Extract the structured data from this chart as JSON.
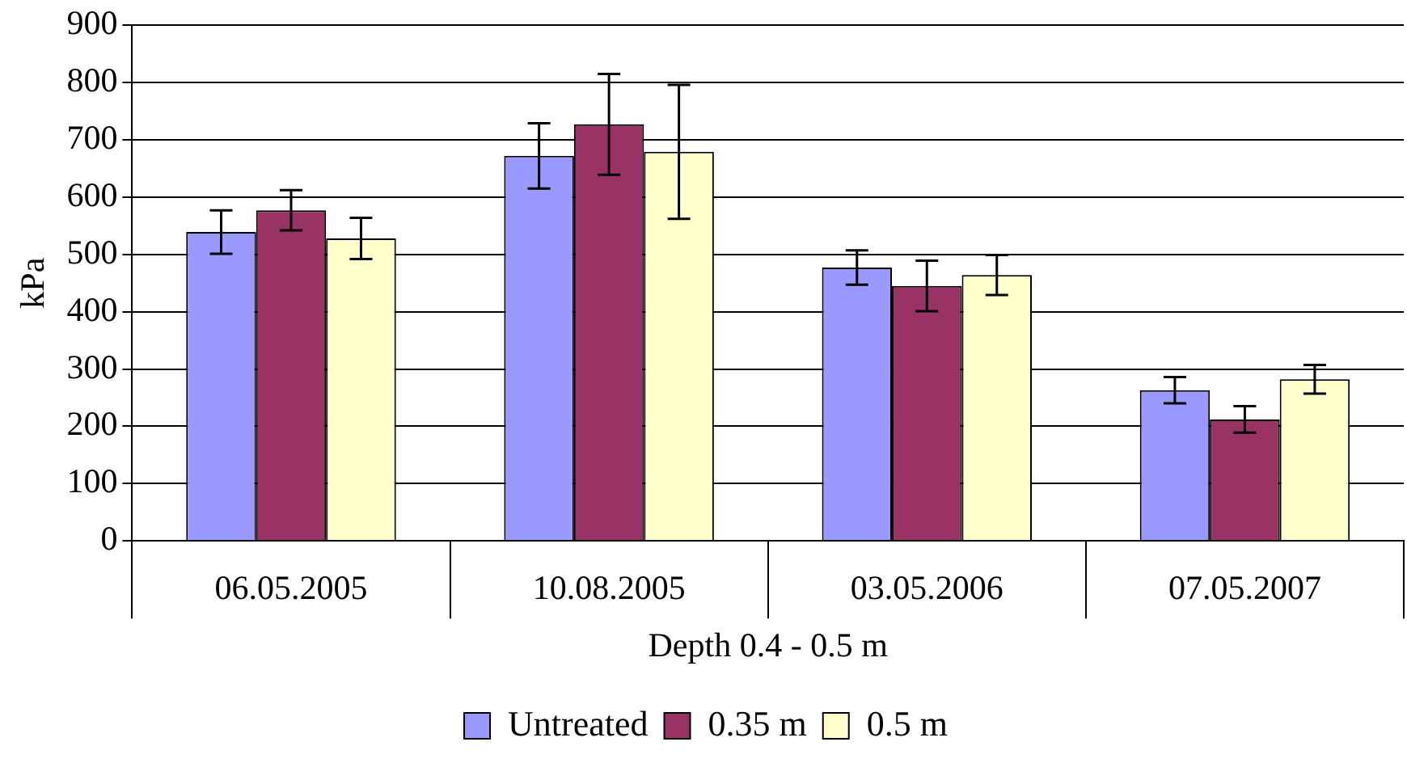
{
  "chart_data": {
    "type": "bar",
    "ylabel": "kPa",
    "xlabel": "Depth 0.4 - 0.5 m",
    "categories": [
      "06.05.2005",
      "10.08.2005",
      "03.05.2006",
      "07.05.2007"
    ],
    "series": [
      {
        "name": "Untreated",
        "color": "#9999ff",
        "values": [
          539,
          672,
          477,
          263
        ],
        "errors": [
          38,
          57,
          30,
          23
        ]
      },
      {
        "name": "0.35 m",
        "color": "#993366",
        "values": [
          577,
          727,
          445,
          212
        ],
        "errors": [
          35,
          88,
          44,
          23
        ]
      },
      {
        "name": "0.5 m",
        "color": "#ffffcc",
        "values": [
          528,
          679,
          464,
          282
        ],
        "errors": [
          36,
          117,
          35,
          25
        ]
      }
    ],
    "ylim": [
      0,
      900
    ],
    "yticks": [
      0,
      100,
      200,
      300,
      400,
      500,
      600,
      700,
      800,
      900
    ],
    "grid": "y",
    "legend": "bottom"
  }
}
